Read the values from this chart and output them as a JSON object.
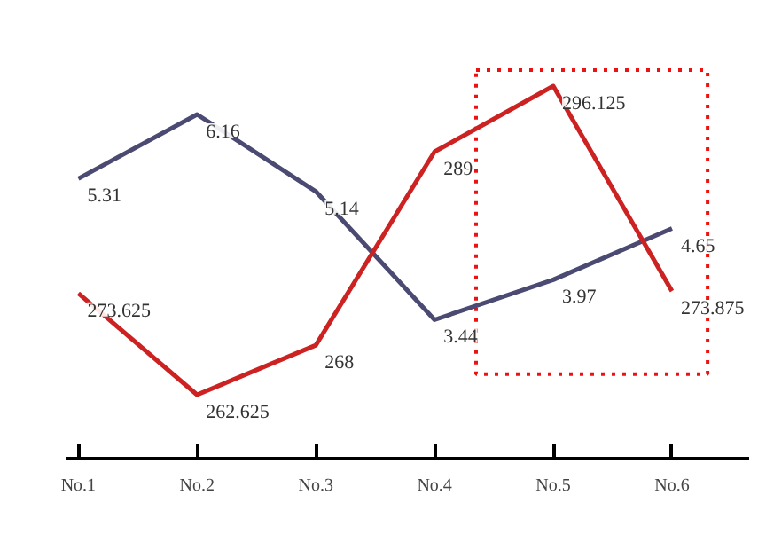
{
  "chart_data": {
    "type": "line",
    "categories": [
      "No.1",
      "No.2",
      "No.3",
      "No.4",
      "No.5",
      "No.6"
    ],
    "tick_labels": "x",
    "grid": false,
    "marker": "none",
    "line_style": "solid",
    "data_labels": true,
    "series": [
      {
        "color": "#4a4a72",
        "axis": "y2",
        "values": [
          5.31,
          6.16,
          5.14,
          3.44,
          3.97,
          4.65
        ]
      },
      {
        "color": "#cc2222",
        "axis": "y",
        "values": [
          273.625,
          262.625,
          268,
          289,
          296.125,
          273.875
        ]
      }
    ]
  }
}
